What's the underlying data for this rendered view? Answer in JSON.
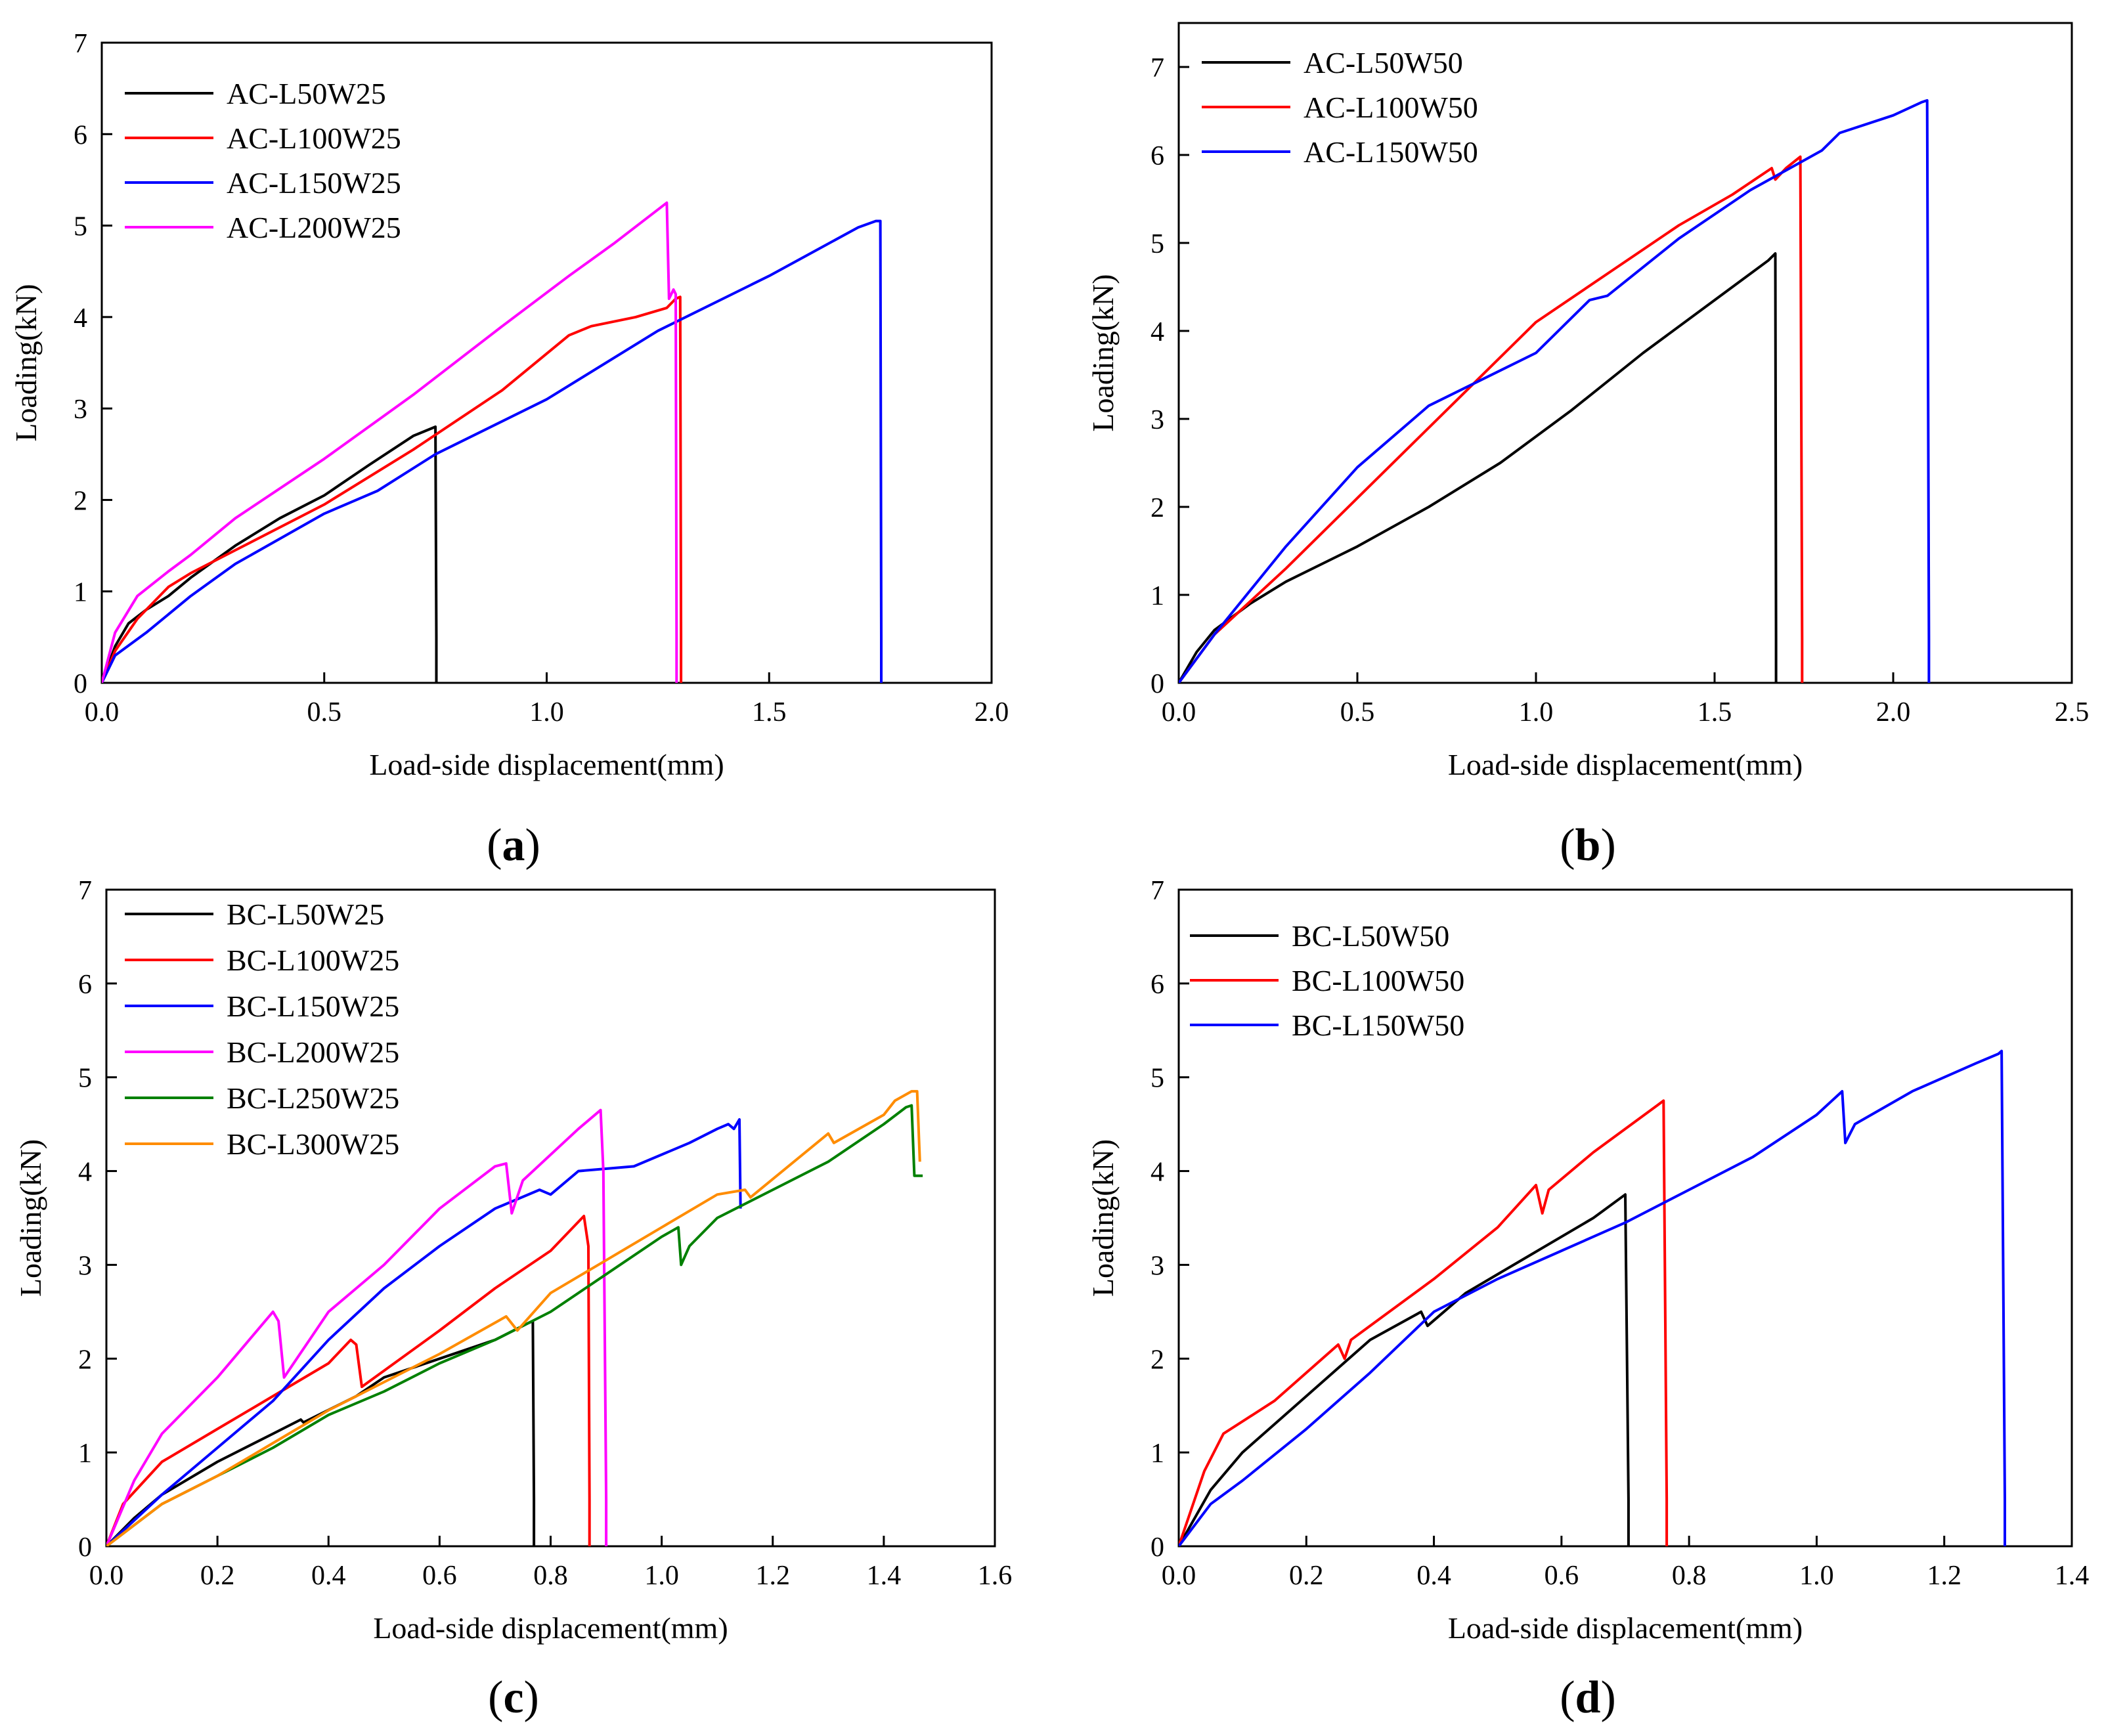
{
  "chart_data": [
    {
      "panel": "(a)",
      "panel_letter": "a",
      "type": "line",
      "xlabel": "Load-side displacement(mm)",
      "ylabel": "Loading(kN)",
      "xlim": [
        0,
        2.0
      ],
      "ylim": [
        0,
        7
      ],
      "xticks": [
        0.0,
        0.5,
        1.0,
        1.5,
        2.0
      ],
      "xtick_labels": [
        "0.0",
        "0.5",
        "1.0",
        "1.5",
        "2.0"
      ],
      "yticks": [
        0,
        1,
        2,
        3,
        4,
        5,
        6,
        7
      ],
      "ytick_labels": [
        "0",
        "1",
        "2",
        "3",
        "4",
        "5",
        "6",
        "7"
      ],
      "legend_position": "top-left",
      "series": [
        {
          "name": "AC-L50W25",
          "color": "#000000",
          "x": [
            0,
            0.03,
            0.06,
            0.1,
            0.15,
            0.2,
            0.3,
            0.4,
            0.5,
            0.6,
            0.7,
            0.75,
            0.752,
            0.752
          ],
          "y": [
            0,
            0.4,
            0.65,
            0.8,
            0.95,
            1.15,
            1.5,
            1.8,
            2.05,
            2.38,
            2.7,
            2.8,
            0.5,
            0
          ]
        },
        {
          "name": "AC-L100W25",
          "color": "#ff0000",
          "x": [
            0,
            0.03,
            0.08,
            0.15,
            0.2,
            0.3,
            0.5,
            0.7,
            0.9,
            1.05,
            1.1,
            1.2,
            1.27,
            1.29,
            1.3,
            1.302,
            1.302
          ],
          "y": [
            0,
            0.35,
            0.7,
            1.05,
            1.2,
            1.45,
            1.95,
            2.55,
            3.2,
            3.8,
            3.9,
            4.0,
            4.1,
            4.2,
            4.22,
            0.5,
            0
          ]
        },
        {
          "name": "AC-L150W25",
          "color": "#0000ff",
          "x": [
            0,
            0.03,
            0.1,
            0.2,
            0.3,
            0.5,
            0.62,
            0.75,
            1.0,
            1.25,
            1.5,
            1.7,
            1.74,
            1.75,
            1.752,
            1.752
          ],
          "y": [
            0,
            0.3,
            0.55,
            0.95,
            1.3,
            1.85,
            2.1,
            2.5,
            3.1,
            3.85,
            4.45,
            4.98,
            5.05,
            5.05,
            0.5,
            0
          ]
        },
        {
          "name": "AC-L200W25",
          "color": "#ff00ff",
          "x": [
            0,
            0.03,
            0.08,
            0.15,
            0.2,
            0.3,
            0.5,
            0.7,
            0.9,
            1.05,
            1.15,
            1.27,
            1.275,
            1.285,
            1.29,
            1.292,
            1.292
          ],
          "y": [
            0,
            0.55,
            0.95,
            1.22,
            1.4,
            1.8,
            2.45,
            3.15,
            3.9,
            4.45,
            4.8,
            5.25,
            4.2,
            4.3,
            4.25,
            0.5,
            0
          ]
        }
      ]
    },
    {
      "panel": "(b)",
      "panel_letter": "b",
      "type": "line",
      "xlabel": "Load-side displacement(mm)",
      "ylabel": "Loading(kN)",
      "xlim": [
        0,
        2.5
      ],
      "ylim": [
        0,
        7.5
      ],
      "xticks": [
        0.0,
        0.5,
        1.0,
        1.5,
        2.0,
        2.5
      ],
      "xtick_labels": [
        "0.0",
        "0.5",
        "1.0",
        "1.5",
        "2.0",
        "2.5"
      ],
      "yticks": [
        0,
        1,
        2,
        3,
        4,
        5,
        6,
        7
      ],
      "ytick_labels": [
        "0",
        "1",
        "2",
        "3",
        "4",
        "5",
        "6",
        "7"
      ],
      "legend_position": "top-left",
      "series": [
        {
          "name": "AC-L50W50",
          "color": "#000000",
          "x": [
            0,
            0.05,
            0.1,
            0.2,
            0.3,
            0.5,
            0.7,
            0.9,
            1.1,
            1.3,
            1.5,
            1.65,
            1.67,
            1.672,
            1.672
          ],
          "y": [
            0,
            0.35,
            0.6,
            0.9,
            1.15,
            1.55,
            2.0,
            2.5,
            3.1,
            3.75,
            4.35,
            4.8,
            4.88,
            0.5,
            0
          ]
        },
        {
          "name": "AC-L100W50",
          "color": "#ff0000",
          "x": [
            0,
            0.1,
            0.3,
            0.5,
            0.8,
            1.0,
            1.2,
            1.4,
            1.55,
            1.66,
            1.67,
            1.7,
            1.74,
            1.745,
            1.745
          ],
          "y": [
            0,
            0.55,
            1.3,
            2.1,
            3.3,
            4.1,
            4.65,
            5.2,
            5.55,
            5.85,
            5.72,
            5.85,
            5.98,
            0.5,
            0
          ]
        },
        {
          "name": "AC-L150W50",
          "color": "#0000ff",
          "x": [
            0,
            0.1,
            0.3,
            0.5,
            0.7,
            0.9,
            1.0,
            1.15,
            1.2,
            1.4,
            1.6,
            1.8,
            1.85,
            2.0,
            2.08,
            2.095,
            2.1,
            2.1
          ],
          "y": [
            0,
            0.55,
            1.55,
            2.45,
            3.15,
            3.55,
            3.75,
            4.35,
            4.4,
            5.05,
            5.6,
            6.05,
            6.25,
            6.45,
            6.6,
            6.62,
            0.5,
            0
          ]
        }
      ]
    },
    {
      "panel": "(c)",
      "panel_letter": "c",
      "type": "line",
      "xlabel": "Load-side displacement(mm)",
      "ylabel": "Loading(kN)",
      "xlim": [
        0,
        1.6
      ],
      "ylim": [
        0,
        7
      ],
      "xticks": [
        0.0,
        0.2,
        0.4,
        0.6,
        0.8,
        1.0,
        1.2,
        1.4,
        1.6
      ],
      "xtick_labels": [
        "0.0",
        "0.2",
        "0.4",
        "0.6",
        "0.8",
        "1.0",
        "1.2",
        "1.4",
        "1.6"
      ],
      "yticks": [
        0,
        1,
        2,
        3,
        4,
        5,
        6,
        7
      ],
      "ytick_labels": [
        "0",
        "1",
        "2",
        "3",
        "4",
        "5",
        "6",
        "7"
      ],
      "legend_position": "top-left",
      "series": [
        {
          "name": "BC-L50W25",
          "color": "#000000",
          "x": [
            0,
            0.05,
            0.1,
            0.2,
            0.3,
            0.35,
            0.355,
            0.45,
            0.5,
            0.6,
            0.7,
            0.75,
            0.76,
            0.768,
            0.77,
            0.77
          ],
          "y": [
            0,
            0.3,
            0.55,
            0.9,
            1.2,
            1.35,
            1.32,
            1.6,
            1.8,
            2.0,
            2.2,
            2.35,
            2.38,
            2.4,
            0.5,
            0
          ]
        },
        {
          "name": "BC-L100W25",
          "color": "#ff0000",
          "x": [
            0,
            0.03,
            0.1,
            0.2,
            0.3,
            0.4,
            0.44,
            0.45,
            0.46,
            0.6,
            0.7,
            0.8,
            0.86,
            0.868,
            0.87,
            0.87
          ],
          "y": [
            0,
            0.45,
            0.9,
            1.25,
            1.6,
            1.95,
            2.2,
            2.15,
            1.7,
            2.3,
            2.75,
            3.15,
            3.52,
            3.2,
            0.5,
            0
          ]
        },
        {
          "name": "BC-L150W25",
          "color": "#0000ff",
          "x": [
            0,
            0.1,
            0.2,
            0.3,
            0.4,
            0.5,
            0.6,
            0.7,
            0.78,
            0.8,
            0.85,
            0.95,
            1.05,
            1.1,
            1.12,
            1.13,
            1.14,
            1.142,
            1.142
          ],
          "y": [
            0,
            0.55,
            1.05,
            1.55,
            2.2,
            2.75,
            3.2,
            3.6,
            3.8,
            3.75,
            4.0,
            4.05,
            4.3,
            4.45,
            4.5,
            4.45,
            4.55,
            3.6,
            3.6
          ]
        },
        {
          "name": "BC-L200W25",
          "color": "#ff00ff",
          "x": [
            0,
            0.05,
            0.1,
            0.2,
            0.3,
            0.31,
            0.32,
            0.4,
            0.5,
            0.6,
            0.7,
            0.72,
            0.73,
            0.75,
            0.85,
            0.89,
            0.895,
            0.9,
            0.9
          ],
          "y": [
            0,
            0.7,
            1.2,
            1.8,
            2.5,
            2.4,
            1.8,
            2.5,
            3.0,
            3.6,
            4.05,
            4.08,
            3.55,
            3.9,
            4.45,
            4.65,
            4.0,
            0.5,
            0
          ]
        },
        {
          "name": "BC-L250W25",
          "color": "#008000",
          "x": [
            0,
            0.1,
            0.2,
            0.3,
            0.4,
            0.5,
            0.6,
            0.7,
            0.8,
            0.9,
            1.0,
            1.03,
            1.035,
            1.05,
            1.1,
            1.2,
            1.3,
            1.4,
            1.44,
            1.45,
            1.455,
            1.47
          ],
          "y": [
            0,
            0.45,
            0.75,
            1.05,
            1.4,
            1.65,
            1.95,
            2.2,
            2.5,
            2.9,
            3.3,
            3.4,
            3.0,
            3.2,
            3.5,
            3.8,
            4.1,
            4.5,
            4.68,
            4.7,
            3.95,
            3.95
          ]
        },
        {
          "name": "BC-L300W25",
          "color": "#ff8c00",
          "x": [
            0,
            0.1,
            0.2,
            0.3,
            0.4,
            0.5,
            0.6,
            0.72,
            0.74,
            0.8,
            0.9,
            1.0,
            1.1,
            1.15,
            1.16,
            1.3,
            1.31,
            1.4,
            1.42,
            1.45,
            1.46,
            1.465,
            1.465
          ],
          "y": [
            0,
            0.45,
            0.75,
            1.1,
            1.45,
            1.75,
            2.05,
            2.45,
            2.3,
            2.7,
            3.05,
            3.4,
            3.75,
            3.8,
            3.72,
            4.4,
            4.3,
            4.6,
            4.75,
            4.85,
            4.85,
            4.1,
            4.1
          ]
        }
      ]
    },
    {
      "panel": "(d)",
      "panel_letter": "d",
      "type": "line",
      "xlabel": "Load-side displacement(mm)",
      "ylabel": "Loading(kN)",
      "xlim": [
        0,
        1.4
      ],
      "ylim": [
        0,
        7
      ],
      "xticks": [
        0.0,
        0.2,
        0.4,
        0.6,
        0.8,
        1.0,
        1.2,
        1.4
      ],
      "xtick_labels": [
        "0.0",
        "0.2",
        "0.4",
        "0.6",
        "0.8",
        "1.0",
        "1.2",
        "1.4"
      ],
      "yticks": [
        0,
        1,
        2,
        3,
        4,
        5,
        6,
        7
      ],
      "ytick_labels": [
        "0",
        "1",
        "2",
        "3",
        "4",
        "5",
        "6",
        "7"
      ],
      "legend_position": "top-left",
      "series": [
        {
          "name": "BC-L50W50",
          "color": "#000000",
          "x": [
            0,
            0.05,
            0.1,
            0.2,
            0.3,
            0.38,
            0.39,
            0.45,
            0.55,
            0.65,
            0.7,
            0.705,
            0.705
          ],
          "y": [
            0,
            0.6,
            1.0,
            1.6,
            2.2,
            2.5,
            2.35,
            2.7,
            3.1,
            3.5,
            3.75,
            0.5,
            0
          ]
        },
        {
          "name": "BC-L100W50",
          "color": "#ff0000",
          "x": [
            0,
            0.04,
            0.07,
            0.15,
            0.25,
            0.26,
            0.27,
            0.4,
            0.5,
            0.56,
            0.57,
            0.58,
            0.65,
            0.75,
            0.76,
            0.765,
            0.765
          ],
          "y": [
            0,
            0.8,
            1.2,
            1.55,
            2.15,
            2.0,
            2.2,
            2.85,
            3.4,
            3.85,
            3.55,
            3.8,
            4.2,
            4.7,
            4.75,
            0.5,
            0
          ]
        },
        {
          "name": "BC-L150W50",
          "color": "#0000ff",
          "x": [
            0,
            0.05,
            0.1,
            0.2,
            0.3,
            0.4,
            0.5,
            0.6,
            0.7,
            0.8,
            0.9,
            1.0,
            1.04,
            1.045,
            1.06,
            1.15,
            1.25,
            1.285,
            1.29,
            1.295,
            1.295
          ],
          "y": [
            0,
            0.45,
            0.7,
            1.25,
            1.85,
            2.5,
            2.85,
            3.15,
            3.45,
            3.8,
            4.15,
            4.6,
            4.85,
            4.3,
            4.5,
            4.85,
            5.15,
            5.25,
            5.28,
            0.5,
            0
          ]
        }
      ]
    }
  ]
}
